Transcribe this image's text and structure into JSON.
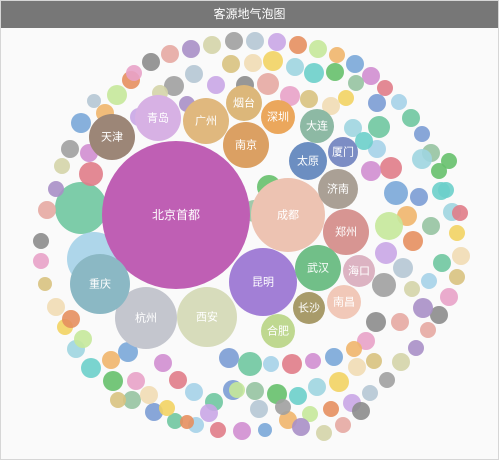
{
  "window": {
    "title": "客源地气泡图"
  },
  "chart_data": {
    "type": "bubble",
    "title": "客源地气泡图",
    "labeled_bubbles": [
      {
        "name": "北京首都",
        "size": 148,
        "color": "#bf5fb4"
      },
      {
        "name": "成都",
        "size": 74,
        "color": "#edc3b2"
      },
      {
        "name": "昆明",
        "size": 68,
        "color": "#a27fd6"
      },
      {
        "name": "杭州",
        "size": 62,
        "color": "#c4c6ce"
      },
      {
        "name": "西安",
        "size": 60,
        "color": "#d7dcbb"
      },
      {
        "name": "重庆",
        "size": 60,
        "color": "#8bb8c4"
      },
      {
        "name": "郑州",
        "size": 46,
        "color": "#d79592"
      },
      {
        "name": "武汉",
        "size": 46,
        "color": "#71bf88"
      },
      {
        "name": "广州",
        "size": 46,
        "color": "#e0b87e"
      },
      {
        "name": "天津",
        "size": 46,
        "color": "#9c8677"
      },
      {
        "name": "南京",
        "size": 46,
        "color": "#dba063"
      },
      {
        "name": "青岛",
        "size": 46,
        "color": "#d7b1e4"
      },
      {
        "name": "济南",
        "size": 40,
        "color": "#aaa095"
      },
      {
        "name": "太原",
        "size": 38,
        "color": "#6c8ec1"
      },
      {
        "name": "烟台",
        "size": 36,
        "color": "#dcb77a"
      },
      {
        "name": "深圳",
        "size": 34,
        "color": "#eba75c"
      },
      {
        "name": "大连",
        "size": 34,
        "color": "#8db9a4"
      },
      {
        "name": "长沙",
        "size": 32,
        "color": "#a89b6a"
      },
      {
        "name": "合肥",
        "size": 34,
        "color": "#bfd890"
      },
      {
        "name": "海口",
        "size": 32,
        "color": "#dcb3c2"
      },
      {
        "name": "南昌",
        "size": 34,
        "color": "#f1c8b8"
      },
      {
        "name": "厦门",
        "size": 30,
        "color": "#7c8dc4"
      }
    ],
    "unlabeled_bubble_count": 150
  }
}
